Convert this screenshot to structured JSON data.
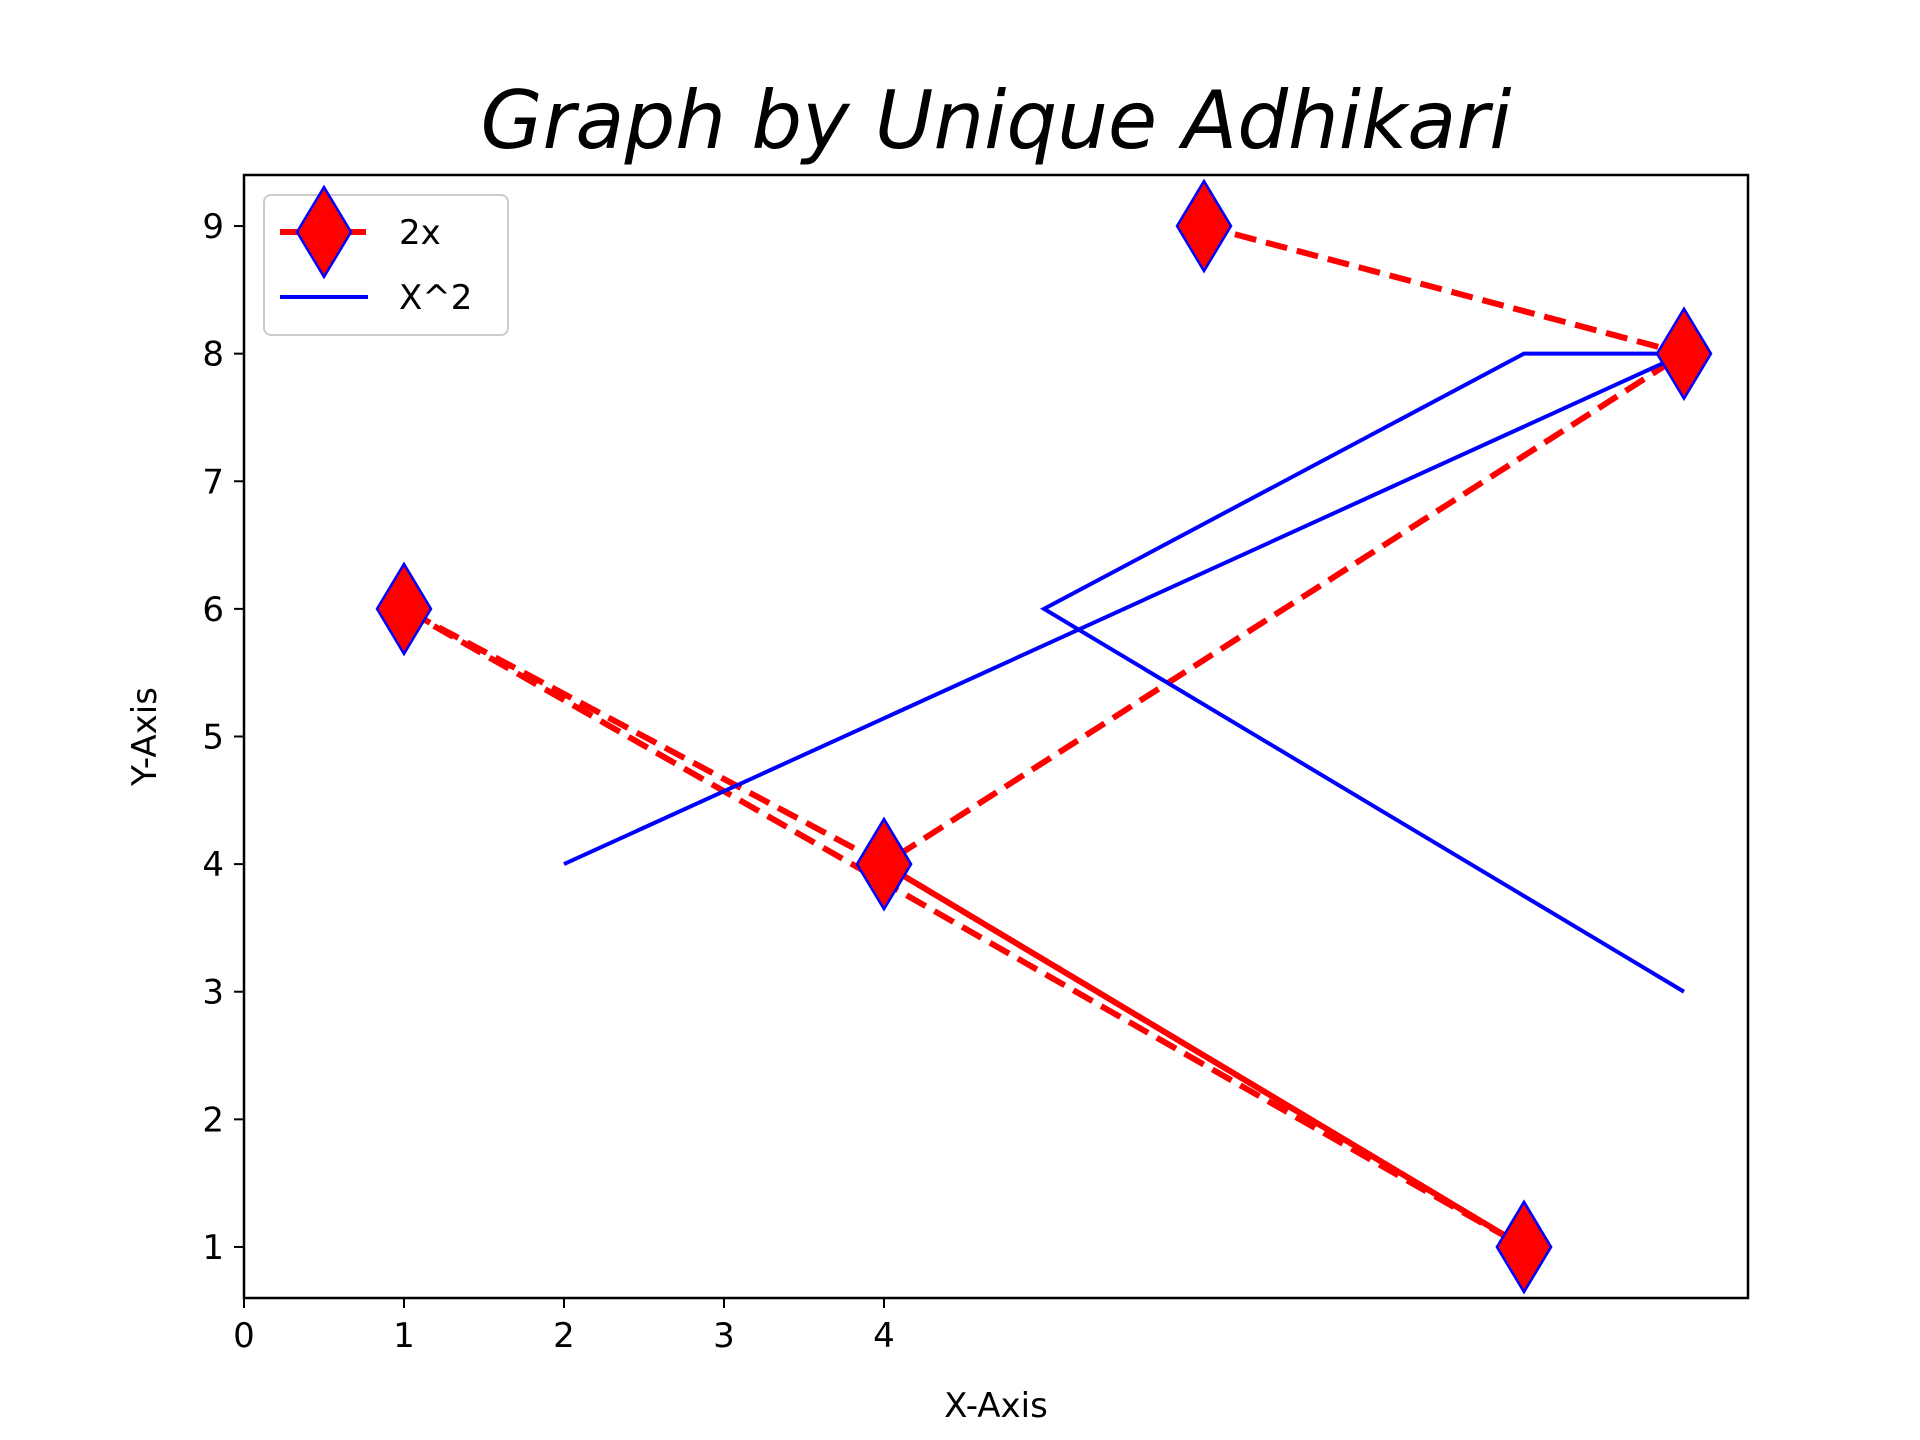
{
  "chart_data": {
    "type": "line",
    "title": "Graph by Unique Adhikari",
    "xlabel": "X-Axis",
    "ylabel": "Y-Axis",
    "xlim": [
      0,
      9.4
    ],
    "ylim": [
      0.6,
      9.4
    ],
    "x_ticks": [
      0,
      1,
      2,
      3,
      4
    ],
    "y_ticks": [
      1,
      2,
      3,
      4,
      5,
      6,
      7,
      8,
      9
    ],
    "grid": false,
    "legend_position": "upper-left",
    "series": [
      {
        "name": "2x",
        "x": [
          6,
          9,
          4,
          8,
          1,
          4,
          8
        ],
        "y": [
          9,
          8,
          4,
          1,
          6,
          4,
          1
        ],
        "color": "#ff0000",
        "line_style": "dashed",
        "marker": "diamond",
        "marker_face_color": "#ff0000",
        "marker_edge_color": "#0000ff"
      },
      {
        "name": "X^2",
        "x": [
          9,
          5,
          8,
          9,
          2
        ],
        "y": [
          3,
          6,
          8,
          8,
          4
        ],
        "color": "#0000ff",
        "line_style": "solid",
        "marker": "none"
      }
    ]
  }
}
